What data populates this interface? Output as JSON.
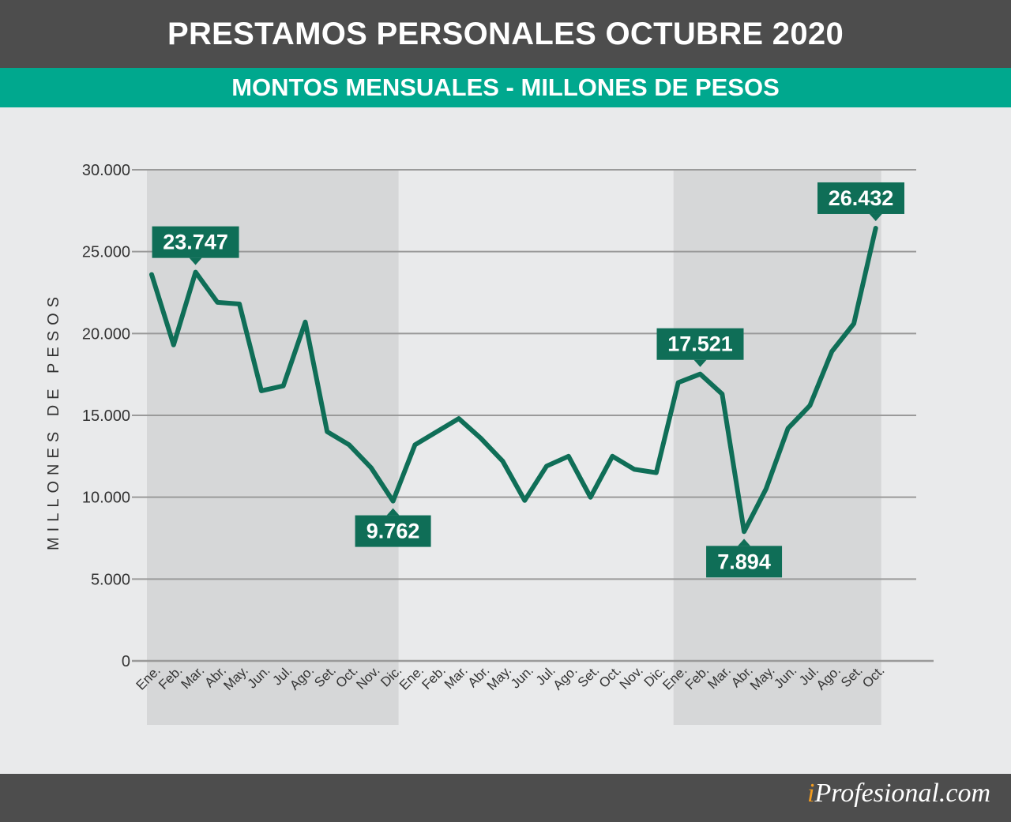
{
  "header": {
    "title": "PRESTAMOS PERSONALES OCTUBRE 2020",
    "subtitle": "MONTOS MENSUALES - MILLONES DE PESOS"
  },
  "footer": {
    "brand_prefix": "i",
    "brand_rest": "Profesional.com"
  },
  "chart_data": {
    "type": "line",
    "title": "PRESTAMOS PERSONALES OCTUBRE 2020",
    "subtitle": "MONTOS MENSUALES - MILLONES DE PESOS",
    "ylabel": "MILLONES DE PESOS",
    "ylim": [
      0,
      30000
    ],
    "yticks": [
      0,
      5000,
      10000,
      15000,
      20000,
      25000,
      30000
    ],
    "ytick_labels": [
      "0",
      "5.000",
      "10.000",
      "15.000",
      "20.000",
      "25.000",
      "30.000"
    ],
    "grid": true,
    "categories": [
      "Ene.",
      "Feb.",
      "Mar.",
      "Abr.",
      "May.",
      "Jun.",
      "Jul.",
      "Ago.",
      "Set.",
      "Oct.",
      "Nov.",
      "Dic.",
      "Ene.",
      "Feb.",
      "Mar.",
      "Abr.",
      "May.",
      "Jun.",
      "Jul.",
      "Ago.",
      "Set.",
      "Oct.",
      "Nov.",
      "Dic.",
      "Ene.",
      "Feb.",
      "Mar.",
      "Abr.",
      "May.",
      "Jun.",
      "Jul.",
      "Ago.",
      "Set.",
      "Oct."
    ],
    "shaded_ranges": [
      [
        0,
        11
      ],
      [
        24,
        33
      ]
    ],
    "series": [
      {
        "color": "#0f6e57",
        "values": [
          23600,
          19300,
          23747,
          21900,
          21800,
          16500,
          16800,
          20700,
          14000,
          13200,
          11800,
          9762,
          13200,
          14000,
          14800,
          13600,
          12200,
          9800,
          11900,
          12500,
          10000,
          12500,
          11700,
          11500,
          17000,
          17521,
          16300,
          7894,
          10500,
          14200,
          15600,
          18900,
          20600,
          26432
        ]
      }
    ],
    "annotations": [
      {
        "index": 2,
        "label": "23.747",
        "position": "above"
      },
      {
        "index": 11,
        "label": "9.762",
        "position": "below"
      },
      {
        "index": 25,
        "label": "17.521",
        "position": "above"
      },
      {
        "index": 27,
        "label": "7.894",
        "position": "below"
      },
      {
        "index": 33,
        "label": "26.432",
        "position": "above"
      }
    ],
    "colors": {
      "line": "#0f6e57",
      "label_bg": "#0f6e57",
      "shade": "#d6d7d8",
      "grid": "#9a9a9a"
    }
  }
}
